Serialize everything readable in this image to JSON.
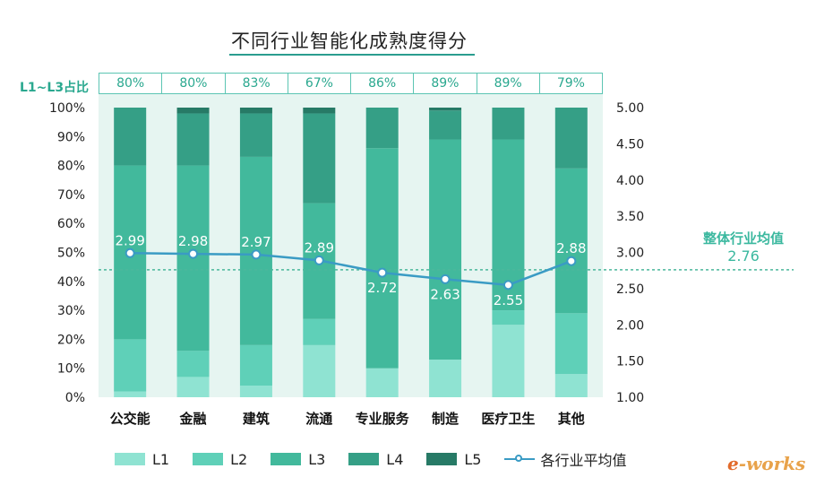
{
  "header": {
    "title": "不同行业智能化成熟度得分",
    "ratio_label": "L1~L3占比"
  },
  "overall_average": {
    "label": "整体行业均值",
    "value": "2.76"
  },
  "logo": {
    "prefix": "e",
    "text": "-works"
  },
  "colors": {
    "L1": "#8fe3d2",
    "L2": "#5fd0b8",
    "L3": "#42b99c",
    "L4": "#359f86",
    "L5": "#277a66",
    "line": "#3a9bc4",
    "background_band": "#e6f5f1",
    "dashed": "#4bb89c"
  },
  "chart_data": {
    "type": "bar",
    "title": "不同行业智能化成熟度得分",
    "categories": [
      "公交能",
      "金融",
      "建筑",
      "流通",
      "专业服务",
      "制造",
      "医疗卫生",
      "其他"
    ],
    "ratios": [
      "80%",
      "80%",
      "83%",
      "67%",
      "86%",
      "89%",
      "89%",
      "79%"
    ],
    "series": [
      {
        "name": "L1",
        "values": [
          2,
          7,
          4,
          18,
          10,
          13,
          25,
          8
        ]
      },
      {
        "name": "L2",
        "values": [
          18,
          9,
          14,
          9,
          0,
          0,
          5,
          21
        ]
      },
      {
        "name": "L3",
        "values": [
          60,
          64,
          65,
          40,
          76,
          76,
          59,
          50
        ]
      },
      {
        "name": "L4",
        "values": [
          20,
          18,
          15,
          31,
          14,
          10,
          11,
          21
        ]
      },
      {
        "name": "L5",
        "values": [
          0,
          2,
          2,
          2,
          0,
          1,
          0,
          0
        ]
      }
    ],
    "line_series": {
      "name": "各行业平均值",
      "values": [
        2.99,
        2.98,
        2.97,
        2.89,
        2.72,
        2.63,
        2.55,
        2.88
      ]
    },
    "y_left": {
      "ticks": [
        "0%",
        "10%",
        "20%",
        "30%",
        "40%",
        "50%",
        "60%",
        "70%",
        "80%",
        "90%",
        "100%"
      ],
      "ylim": [
        0,
        100
      ]
    },
    "y_right": {
      "ticks": [
        "1.00",
        "1.50",
        "2.00",
        "2.50",
        "3.00",
        "3.50",
        "4.00",
        "4.50",
        "5.00"
      ],
      "ylim": [
        1,
        5
      ]
    },
    "reference_line": 2.76,
    "legend": [
      "L1",
      "L2",
      "L3",
      "L4",
      "L5",
      "各行业平均值"
    ],
    "legend_position": "bottom"
  }
}
